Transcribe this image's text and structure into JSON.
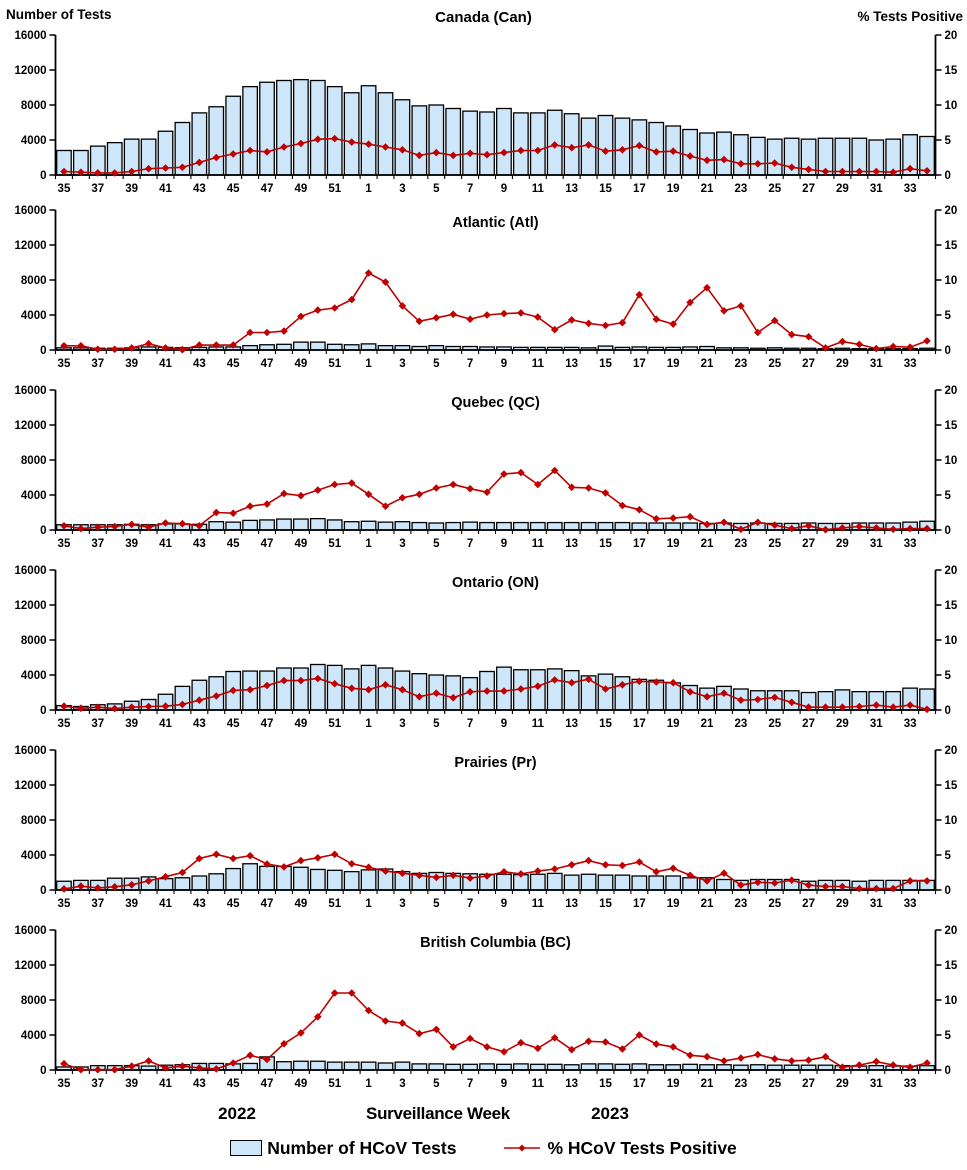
{
  "colors": {
    "bar_fill": "#CDE6F9",
    "bar_stroke": "#000000",
    "line": "#C00000",
    "axis": "#000000",
    "background": "#FFFFFF"
  },
  "chart_data": {
    "type": "combo_bar_line_small_multiples",
    "layout": "6 vertically stacked panels sharing x axis; bars on left axis, line with diamond markers on right axis; no gridlines; legend at bottom center",
    "x": {
      "title": "Surveillance Week",
      "year_left": "2022",
      "year_right": "2023",
      "label_every": 2,
      "weeks": [
        "35",
        "36",
        "37",
        "38",
        "39",
        "40",
        "41",
        "42",
        "43",
        "44",
        "45",
        "46",
        "47",
        "48",
        "49",
        "50",
        "51",
        "52",
        "1",
        "2",
        "3",
        "4",
        "5",
        "6",
        "7",
        "8",
        "9",
        "10",
        "11",
        "12",
        "13",
        "14",
        "15",
        "16",
        "17",
        "18",
        "19",
        "20",
        "21",
        "22",
        "23",
        "24",
        "25",
        "26",
        "27",
        "28",
        "29",
        "30",
        "31",
        "32",
        "33",
        "34"
      ]
    },
    "left_axis": {
      "label": "Number of Tests",
      "min": 0,
      "max": 16000,
      "ticks": [
        0,
        4000,
        8000,
        12000,
        16000
      ]
    },
    "right_axis": {
      "label": "% Tests Positive",
      "min": 0,
      "max": 20,
      "ticks": [
        0,
        5,
        10,
        15,
        20
      ]
    },
    "series_names": {
      "bars": "Number of HCoV Tests",
      "line": "% HCoV Tests Positive"
    },
    "panels": [
      {
        "id": "can",
        "title": "Canada (Can)",
        "tests": [
          2800,
          2800,
          3300,
          3700,
          4100,
          4100,
          5000,
          6000,
          7100,
          7800,
          9000,
          10100,
          10600,
          10800,
          10900,
          10800,
          10100,
          9400,
          10200,
          9400,
          8600,
          7900,
          8000,
          7600,
          7300,
          7200,
          7600,
          7100,
          7100,
          7400,
          7000,
          6500,
          6800,
          6500,
          6300,
          6000,
          5600,
          5200,
          4800,
          4900,
          4600,
          4300,
          4100,
          4200,
          4100,
          4200,
          4200,
          4200,
          4000,
          4100,
          4600,
          4400
        ],
        "pct_positive": [
          0.5,
          0.4,
          0.3,
          0.3,
          0.5,
          0.9,
          1.0,
          1.1,
          1.8,
          2.5,
          3.0,
          3.5,
          3.3,
          4.0,
          4.5,
          5.1,
          5.2,
          4.7,
          4.4,
          4.0,
          3.6,
          2.8,
          3.2,
          2.8,
          3.1,
          2.9,
          3.2,
          3.5,
          3.5,
          4.3,
          3.9,
          4.3,
          3.4,
          3.6,
          4.2,
          3.3,
          3.4,
          2.7,
          2.1,
          2.2,
          1.6,
          1.6,
          1.7,
          1.1,
          0.8,
          0.5,
          0.5,
          0.5,
          0.5,
          0.4,
          0.9,
          0.6
        ]
      },
      {
        "id": "atl",
        "title": "Atlantic (Atl)",
        "tests": [
          250,
          250,
          200,
          200,
          250,
          350,
          300,
          250,
          300,
          350,
          350,
          500,
          600,
          650,
          900,
          900,
          650,
          600,
          700,
          500,
          500,
          400,
          500,
          400,
          400,
          350,
          350,
          300,
          300,
          300,
          300,
          250,
          450,
          300,
          350,
          300,
          300,
          350,
          400,
          250,
          250,
          200,
          250,
          200,
          200,
          150,
          200,
          150,
          150,
          150,
          150,
          200
        ],
        "pct_positive": [
          0.6,
          0.6,
          0.1,
          0.1,
          0.3,
          0.9,
          0.3,
          0.05,
          0.7,
          0.7,
          0.7,
          2.5,
          2.5,
          2.7,
          4.8,
          5.7,
          6.0,
          7.2,
          11.0,
          9.7,
          6.3,
          4.1,
          4.6,
          5.1,
          4.4,
          5.0,
          5.2,
          5.3,
          4.7,
          2.9,
          4.3,
          3.8,
          3.5,
          3.9,
          7.9,
          4.4,
          3.7,
          6.8,
          8.9,
          5.6,
          6.3,
          2.5,
          4.2,
          2.2,
          1.9,
          0.3,
          1.2,
          0.8,
          0.2,
          0.5,
          0.4,
          1.3
        ]
      },
      {
        "id": "qc",
        "title": "Quebec (QC)",
        "tests": [
          600,
          600,
          600,
          600,
          650,
          600,
          700,
          700,
          650,
          950,
          900,
          1100,
          1150,
          1250,
          1250,
          1300,
          1150,
          950,
          1000,
          900,
          950,
          850,
          800,
          850,
          900,
          850,
          850,
          850,
          850,
          850,
          850,
          850,
          850,
          850,
          800,
          800,
          800,
          800,
          750,
          800,
          750,
          800,
          750,
          750,
          800,
          750,
          750,
          800,
          800,
          800,
          900,
          1000
        ],
        "pct_positive": [
          0.6,
          0.2,
          0.4,
          0.5,
          0.8,
          0.4,
          1.0,
          0.9,
          0.6,
          2.5,
          2.4,
          3.4,
          3.7,
          5.2,
          4.9,
          5.7,
          6.5,
          6.7,
          5.1,
          3.4,
          4.6,
          5.1,
          6.0,
          6.5,
          5.9,
          5.4,
          8.0,
          8.2,
          6.5,
          8.5,
          6.1,
          6.0,
          5.3,
          3.5,
          2.9,
          1.6,
          1.7,
          1.9,
          0.8,
          1.1,
          0.1,
          1.1,
          0.7,
          0.2,
          0.6,
          0.05,
          0.3,
          0.5,
          0.3,
          0.1,
          0.2,
          0.2
        ]
      },
      {
        "id": "on",
        "title": "Ontario (ON)",
        "tests": [
          500,
          400,
          600,
          700,
          1000,
          1200,
          1800,
          2700,
          3400,
          3800,
          4400,
          4450,
          4450,
          4800,
          4800,
          5200,
          5100,
          4700,
          5100,
          4800,
          4450,
          4150,
          4000,
          3900,
          3700,
          4400,
          4900,
          4600,
          4600,
          4700,
          4500,
          3900,
          4100,
          3800,
          3500,
          3400,
          3100,
          2800,
          2500,
          2700,
          2400,
          2200,
          2200,
          2200,
          2000,
          2100,
          2300,
          2100,
          2100,
          2100,
          2500,
          2400
        ],
        "pct_positive": [
          0.55,
          0.25,
          0.4,
          0.2,
          0.4,
          0.5,
          0.55,
          0.8,
          1.4,
          2.0,
          2.8,
          2.9,
          3.5,
          4.2,
          4.2,
          4.5,
          3.75,
          3.1,
          2.9,
          3.6,
          2.9,
          1.9,
          2.4,
          1.75,
          2.6,
          2.7,
          2.7,
          3.0,
          3.4,
          4.3,
          3.9,
          4.4,
          3.0,
          3.6,
          4.1,
          4.0,
          3.9,
          2.6,
          1.9,
          2.4,
          1.4,
          1.5,
          1.8,
          1.1,
          0.4,
          0.4,
          0.4,
          0.5,
          0.7,
          0.4,
          0.7,
          0.1
        ]
      },
      {
        "id": "pr",
        "title": "Prairies (Pr)",
        "tests": [
          1000,
          1100,
          1100,
          1350,
          1350,
          1500,
          1300,
          1400,
          1600,
          1850,
          2450,
          3000,
          2700,
          2700,
          2600,
          2350,
          2250,
          2100,
          2300,
          2400,
          2100,
          1900,
          2000,
          1900,
          1850,
          1800,
          1800,
          1750,
          1800,
          1900,
          1700,
          1800,
          1700,
          1700,
          1600,
          1600,
          1600,
          1400,
          1400,
          1200,
          1100,
          1200,
          1200,
          1200,
          1000,
          1100,
          1100,
          1000,
          1100,
          1100,
          1100,
          1100
        ],
        "pct_positive": [
          0.15,
          0.55,
          0.3,
          0.45,
          0.75,
          1.3,
          1.9,
          2.5,
          4.5,
          5.1,
          4.5,
          4.9,
          3.7,
          3.3,
          4.2,
          4.6,
          5.1,
          3.75,
          3.25,
          2.7,
          2.4,
          2.1,
          1.8,
          2.1,
          1.7,
          2.0,
          2.6,
          2.3,
          2.7,
          3.0,
          3.6,
          4.2,
          3.6,
          3.5,
          4.0,
          2.6,
          3.1,
          2.1,
          1.3,
          2.4,
          0.7,
          1.1,
          1.0,
          1.4,
          0.7,
          0.5,
          0.5,
          0.2,
          0.2,
          0.2,
          1.3,
          1.3
        ]
      },
      {
        "id": "bc",
        "title": "British Columbia (BC)",
        "tests": [
          350,
          350,
          500,
          500,
          500,
          450,
          550,
          600,
          750,
          750,
          700,
          750,
          1500,
          950,
          1000,
          1000,
          900,
          900,
          900,
          800,
          900,
          700,
          700,
          650,
          650,
          700,
          650,
          700,
          650,
          650,
          600,
          700,
          700,
          650,
          700,
          600,
          600,
          650,
          600,
          600,
          550,
          600,
          550,
          550,
          550,
          550,
          500,
          450,
          500,
          450,
          450,
          500
        ],
        "pct_positive": [
          0.9,
          0.05,
          0.05,
          0.05,
          0.55,
          1.3,
          0.3,
          0.55,
          0.3,
          0.15,
          1.0,
          2.1,
          1.5,
          3.75,
          5.3,
          7.6,
          11.0,
          11.0,
          8.5,
          7.0,
          6.7,
          5.2,
          5.8,
          3.3,
          4.5,
          3.3,
          2.6,
          3.9,
          3.1,
          4.6,
          2.9,
          4.1,
          4.0,
          3.0,
          5.0,
          3.7,
          3.3,
          2.1,
          1.9,
          1.3,
          1.7,
          2.2,
          1.6,
          1.3,
          1.4,
          1.9,
          0.4,
          0.7,
          1.2,
          0.7,
          0.4,
          1.0
        ]
      }
    ]
  }
}
